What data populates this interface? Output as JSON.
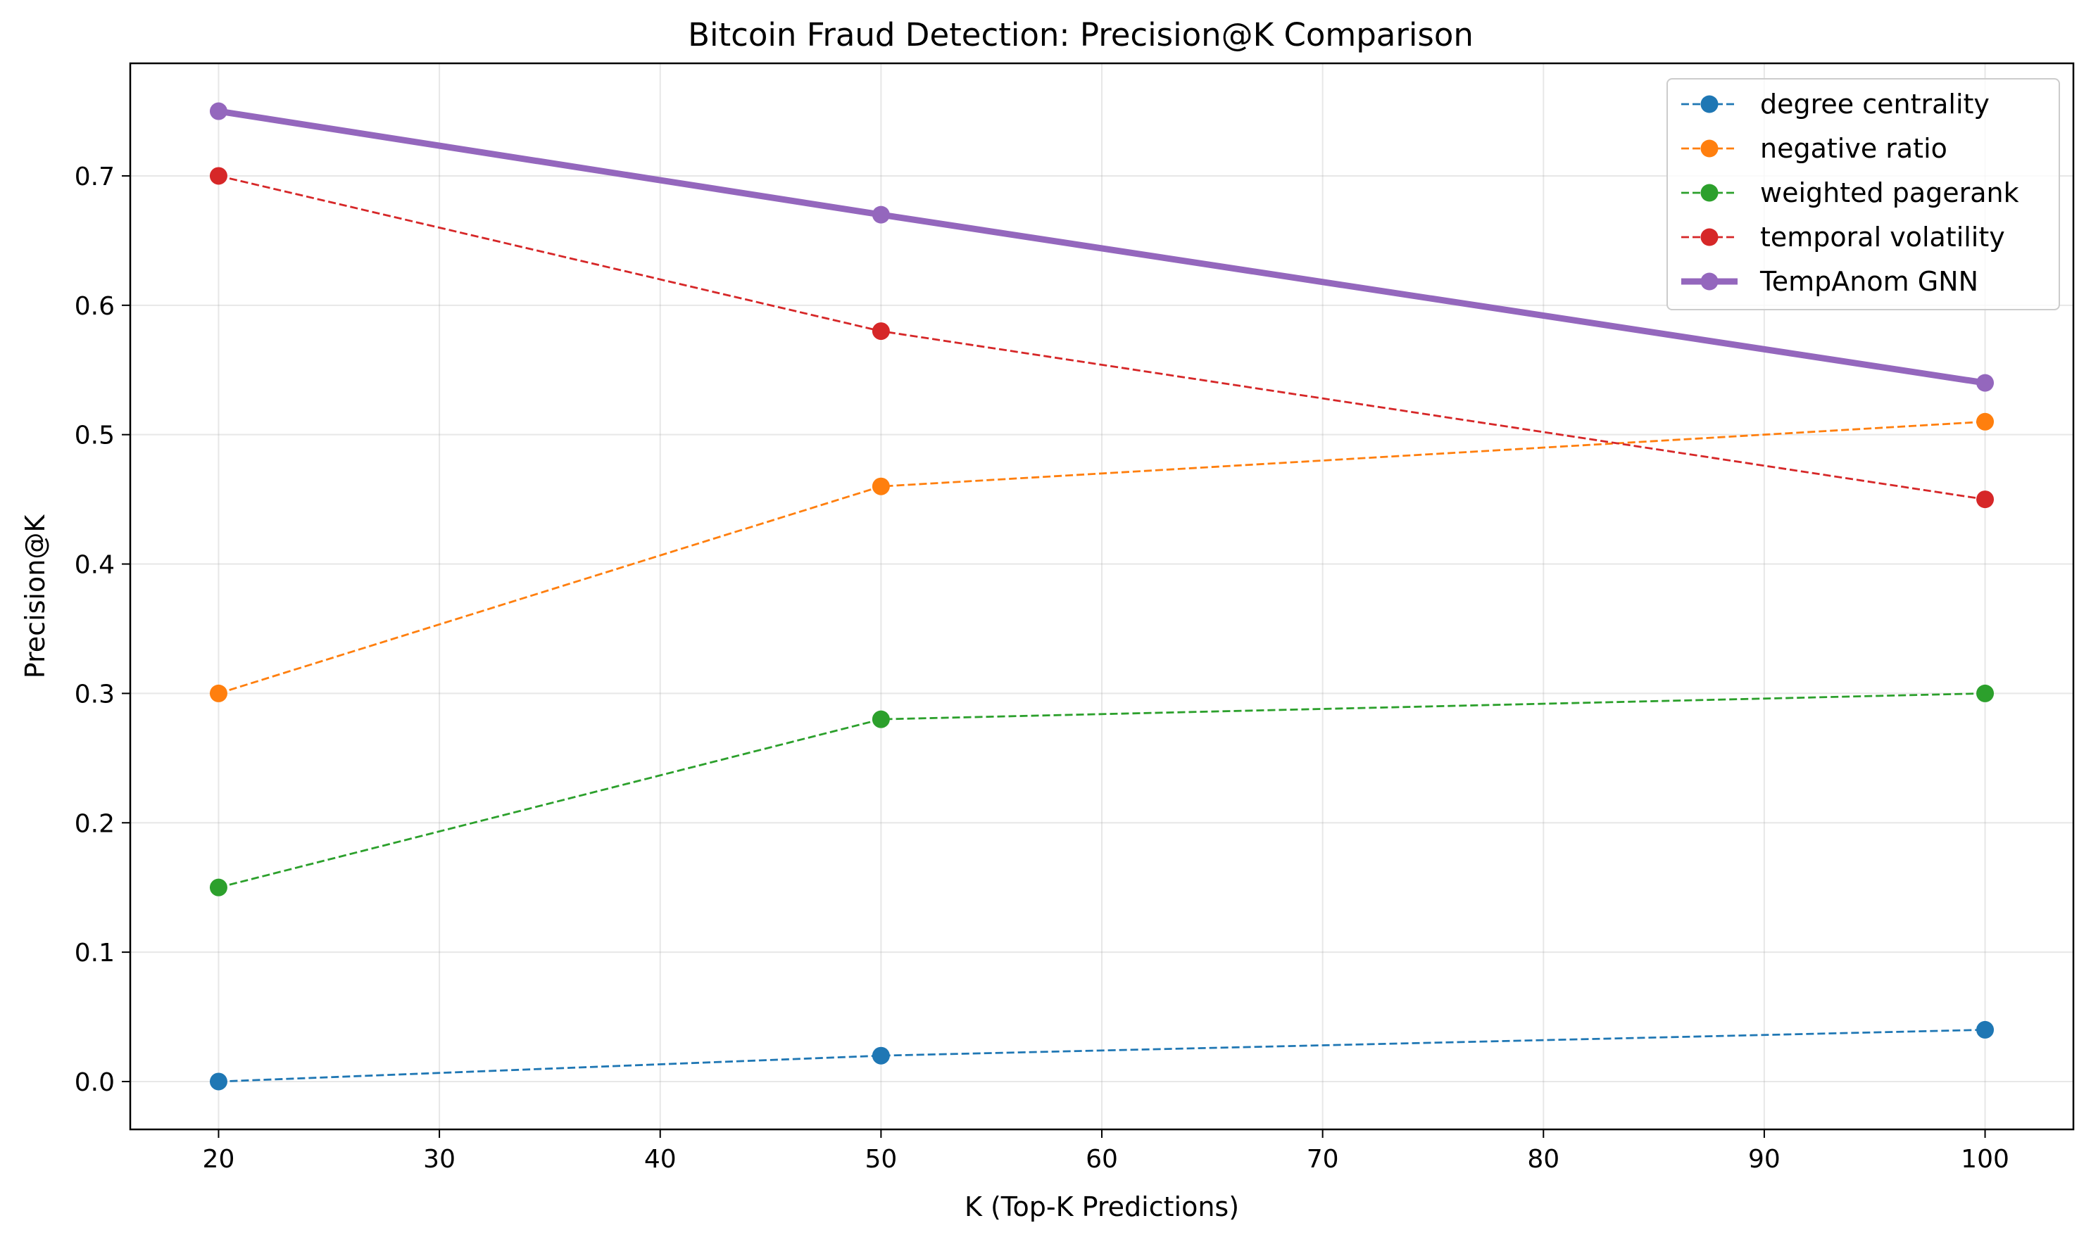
{
  "chart_data": {
    "type": "line",
    "title": "Bitcoin Fraud Detection: Precision@K Comparison",
    "xlabel": "K (Top-K Predictions)",
    "ylabel": "Precision@K",
    "xlim": [
      16,
      104
    ],
    "ylim": [
      -0.037,
      0.787
    ],
    "xticks": [
      20,
      30,
      40,
      50,
      60,
      70,
      80,
      90,
      100
    ],
    "xtick_labels": [
      "20",
      "30",
      "40",
      "50",
      "60",
      "70",
      "80",
      "90",
      "100"
    ],
    "yticks": [
      0.0,
      0.1,
      0.2,
      0.3,
      0.4,
      0.5,
      0.6,
      0.7
    ],
    "ytick_labels": [
      "0.0",
      "0.1",
      "0.2",
      "0.3",
      "0.4",
      "0.5",
      "0.6",
      "0.7"
    ],
    "grid": true,
    "legend_position": "top-right",
    "x": [
      20,
      50,
      100
    ],
    "series": [
      {
        "name": "degree centrality",
        "values": [
          0.0,
          0.02,
          0.04
        ],
        "color": "#1f77b4",
        "style": "dashed"
      },
      {
        "name": "negative ratio",
        "values": [
          0.3,
          0.46,
          0.51
        ],
        "color": "#ff7f0e",
        "style": "dashed"
      },
      {
        "name": "weighted pagerank",
        "values": [
          0.15,
          0.28,
          0.3
        ],
        "color": "#2ca02c",
        "style": "dashed"
      },
      {
        "name": "temporal volatility",
        "values": [
          0.7,
          0.58,
          0.45
        ],
        "color": "#d62728",
        "style": "dashed"
      },
      {
        "name": "TempAnom GNN",
        "values": [
          0.75,
          0.67,
          0.54
        ],
        "color": "#9467bd",
        "style": "solid-thick"
      }
    ]
  }
}
